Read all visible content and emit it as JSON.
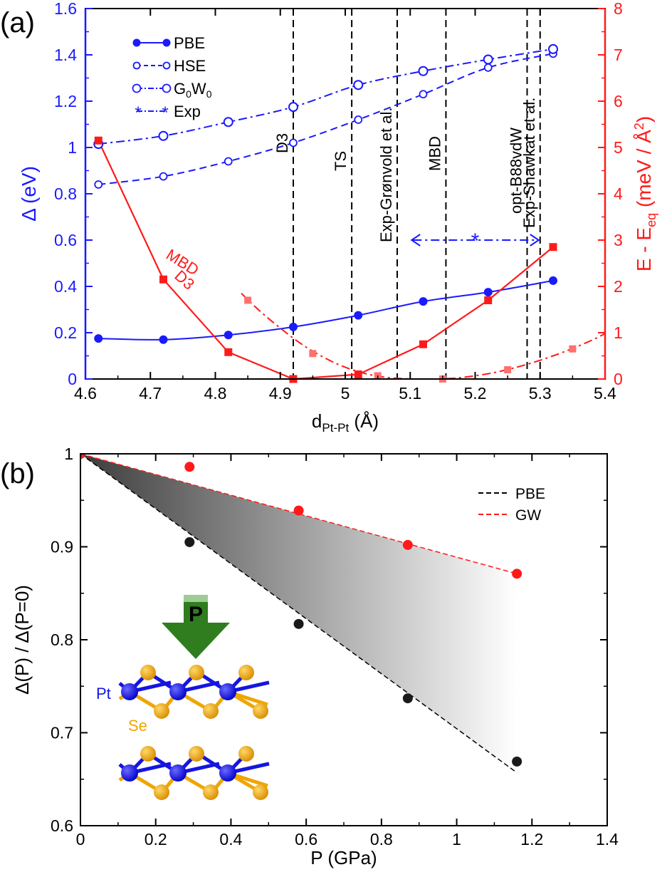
{
  "panels": {
    "a": {
      "label": "(a)"
    },
    "b": {
      "label": "(b)"
    }
  },
  "colors": {
    "blue": "#1a1aff",
    "red": "#ff1a1a",
    "red_light": "#ff7070",
    "black": "#000000",
    "green": "#2f7d1f",
    "pt_atom": "#1515e0",
    "se_atom": "#f0a500"
  },
  "chart_data": [
    {
      "type": "line",
      "panel": "a",
      "xlabel_main": "d",
      "xlabel_sub": "Pt-Pt",
      "xlabel_unit": " (Å)",
      "ylabel_left": "Δ (eV)",
      "ylabel_right": "E - E",
      "ylabel_right_sub": "eq",
      "ylabel_right_unit": " (meV / Å",
      "ylabel_right_sup": "2",
      "ylabel_right_close": ")",
      "xlim": [
        4.6,
        5.4
      ],
      "xticks": [
        4.6,
        4.7,
        4.8,
        4.9,
        5.0,
        5.1,
        5.2,
        5.3,
        5.4
      ],
      "xtick_labels": [
        "4.6",
        "4.7",
        "4.8",
        "4.9",
        "5",
        "5.1",
        "5.2",
        "5.3",
        "5.4"
      ],
      "ylim_left": [
        0,
        1.6
      ],
      "yticks_left": [
        0,
        0.2,
        0.4,
        0.6,
        0.8,
        1.0,
        1.2,
        1.4,
        1.6
      ],
      "ytick_labels_left": [
        "0",
        "0.2",
        "0.4",
        "0.6",
        "0.8",
        "1",
        "1.2",
        "1.4",
        "1.6"
      ],
      "ylim_right": [
        0,
        8
      ],
      "yticks_right": [
        0,
        1,
        2,
        3,
        4,
        5,
        6,
        7,
        8
      ],
      "ytick_labels_right": [
        "0",
        "1",
        "2",
        "3",
        "4",
        "5",
        "6",
        "7",
        "8"
      ],
      "legend_position": "top-left",
      "legend": [
        {
          "label": "PBE",
          "style": "solid-filled"
        },
        {
          "label": "HSE",
          "style": "dashed-open"
        },
        {
          "label": "G",
          "sub_a": "0",
          "mid": "W",
          "sub_b": "0",
          "style": "dashdot-open"
        },
        {
          "label": "Exp",
          "style": "star"
        }
      ],
      "series": [
        {
          "name": "PBE",
          "axis": "left",
          "x": [
            4.62,
            4.72,
            4.82,
            4.92,
            5.02,
            5.12,
            5.22,
            5.32
          ],
          "values": [
            0.175,
            0.17,
            0.19,
            0.225,
            0.275,
            0.335,
            0.375,
            0.425
          ]
        },
        {
          "name": "HSE",
          "axis": "left",
          "x": [
            4.62,
            4.72,
            4.82,
            4.92,
            5.02,
            5.12,
            5.22,
            5.32
          ],
          "values": [
            0.84,
            0.875,
            0.94,
            1.02,
            1.12,
            1.23,
            1.345,
            1.405
          ]
        },
        {
          "name": "G0W0",
          "axis": "left",
          "x": [
            4.62,
            4.72,
            4.82,
            4.92,
            5.02,
            5.12,
            5.22,
            5.32
          ],
          "values": [
            1.015,
            1.05,
            1.11,
            1.175,
            1.27,
            1.33,
            1.38,
            1.425
          ]
        },
        {
          "name": "D3",
          "axis": "right",
          "x": [
            4.62,
            4.72,
            4.82,
            4.92,
            5.02,
            5.12,
            5.22,
            5.32
          ],
          "values": [
            5.15,
            2.15,
            0.58,
            0.0,
            0.1,
            0.75,
            1.7,
            2.85
          ]
        },
        {
          "name": "MBD",
          "axis": "right",
          "x": [
            4.85,
            4.95,
            5.05,
            5.15,
            5.25,
            5.35
          ],
          "values": [
            1.7,
            0.55,
            0.07,
            0.0,
            0.2,
            0.65
          ],
          "curve_x": [
            4.84,
            4.87,
            4.9,
            4.93,
            4.96,
            4.99,
            5.02,
            5.05,
            5.08,
            5.11,
            5.14,
            5.17,
            5.2,
            5.23,
            5.26,
            5.29,
            5.32,
            5.35,
            5.38,
            5.4
          ],
          "curve_y": [
            1.85,
            1.45,
            1.1,
            0.78,
            0.52,
            0.31,
            0.16,
            0.06,
            0.015,
            0.0,
            0.0,
            0.02,
            0.07,
            0.14,
            0.24,
            0.36,
            0.5,
            0.66,
            0.84,
            0.98
          ]
        }
      ],
      "exp_range": {
        "x_from": 5.1,
        "x_to": 5.3,
        "star_x": 5.2,
        "y": 0.6
      },
      "vlines": [
        {
          "x": 4.92,
          "label": "D3"
        },
        {
          "x": 5.01,
          "label": "TS"
        },
        {
          "x": 5.08,
          "label": "Exp-Grønvold et al."
        },
        {
          "x": 5.155,
          "label": "MBD"
        },
        {
          "x": 5.28,
          "label": "opt-B88vdW"
        },
        {
          "x": 5.3,
          "label": "Exp-Shawkat et al."
        }
      ],
      "curve_labels": [
        {
          "text": "D3",
          "x": 4.78,
          "y_right": 1.9
        },
        {
          "text": "MBD",
          "x": 4.8,
          "y_right": 2.3
        }
      ]
    },
    {
      "type": "scatter",
      "panel": "b",
      "xlabel": "P (GPa)",
      "ylabel": "Δ(P) / Δ(P=0)",
      "xlim": [
        0,
        1.4
      ],
      "xticks": [
        0,
        0.2,
        0.4,
        0.6,
        0.8,
        1.0,
        1.2,
        1.4
      ],
      "xtick_labels": [
        "0",
        "0.2",
        "0.4",
        "0.6",
        "0.8",
        "1",
        "1.2",
        "1.4"
      ],
      "ylim": [
        0.6,
        1.0
      ],
      "yticks": [
        0.6,
        0.7,
        0.8,
        0.9,
        1.0
      ],
      "ytick_labels": [
        "0.6",
        "0.7",
        "0.8",
        "0.9",
        "1"
      ],
      "legend_position": "top-right",
      "legend": [
        {
          "label": "PBE",
          "color": "#000000"
        },
        {
          "label": "GW",
          "color": "#ff1a1a"
        }
      ],
      "series": [
        {
          "name": "PBE",
          "x": [
            0,
            0.29,
            0.58,
            0.87,
            1.16
          ],
          "values": [
            1.0,
            0.905,
            0.817,
            0.737,
            0.669
          ],
          "fit": {
            "x0": 0,
            "y0": 1.0,
            "x1": 1.16,
            "y1": 0.657
          }
        },
        {
          "name": "GW",
          "x": [
            0,
            0.29,
            0.58,
            0.87,
            1.16
          ],
          "values": [
            1.0,
            0.986,
            0.939,
            0.902,
            0.871
          ],
          "fit": {
            "x0": 0,
            "y0": 1.0,
            "x1": 1.16,
            "y1": 0.871
          }
        }
      ],
      "inset": {
        "arrow_label": "P",
        "pt_label": "Pt",
        "se_label": "Se"
      }
    }
  ]
}
